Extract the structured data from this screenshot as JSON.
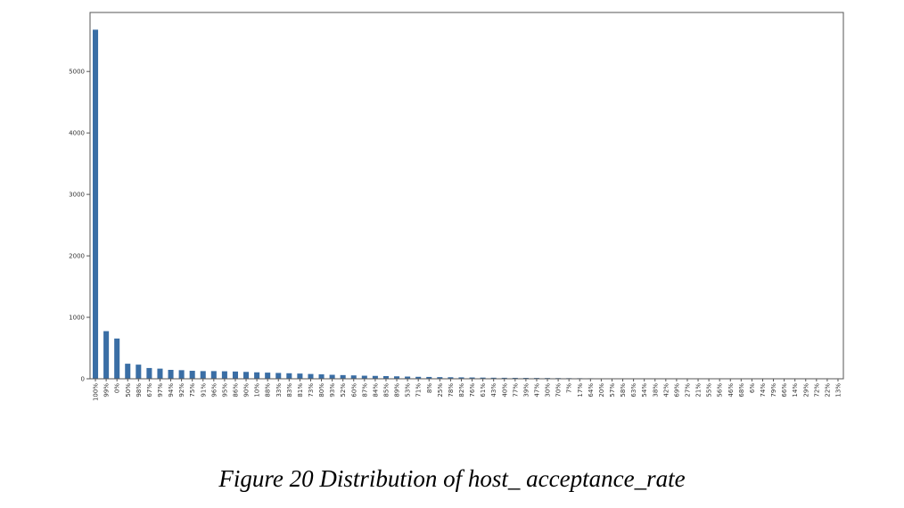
{
  "caption": "Figure 20 Distribution of host_ acceptance_rate",
  "chart_data": {
    "type": "bar",
    "title": "",
    "xlabel": "",
    "ylabel": "",
    "ylim": [
      0,
      5960
    ],
    "yticks": [
      0,
      1000,
      2000,
      3000,
      4000,
      5000
    ],
    "grid": false,
    "bar_color": "#3a6ea5",
    "categories": [
      "100%",
      "99%",
      "0%",
      "50%",
      "98%",
      "67%",
      "97%",
      "94%",
      "92%",
      "75%",
      "91%",
      "96%",
      "95%",
      "86%",
      "90%",
      "10%",
      "88%",
      "33%",
      "83%",
      "81%",
      "73%",
      "80%",
      "93%",
      "52%",
      "60%",
      "87%",
      "84%",
      "85%",
      "89%",
      "53%",
      "71%",
      "8%",
      "25%",
      "78%",
      "82%",
      "76%",
      "61%",
      "43%",
      "40%",
      "77%",
      "39%",
      "47%",
      "30%",
      "70%",
      "7%",
      "17%",
      "64%",
      "20%",
      "57%",
      "58%",
      "63%",
      "54%",
      "38%",
      "42%",
      "69%",
      "27%",
      "21%",
      "55%",
      "56%",
      "46%",
      "68%",
      "6%",
      "74%",
      "79%",
      "66%",
      "14%",
      "29%",
      "72%",
      "22%",
      "13%"
    ],
    "values": [
      5680,
      775,
      655,
      245,
      230,
      175,
      165,
      145,
      140,
      130,
      125,
      125,
      122,
      118,
      112,
      105,
      100,
      95,
      90,
      85,
      78,
      72,
      65,
      60,
      55,
      50,
      47,
      44,
      40,
      36,
      32,
      30,
      27,
      25,
      23,
      21,
      19,
      17,
      16,
      15,
      14,
      13,
      12,
      11,
      10,
      9,
      8,
      6,
      5,
      4,
      3,
      3,
      2,
      2,
      2,
      2,
      2,
      1,
      1,
      1,
      1,
      1,
      1,
      1,
      1,
      1,
      1,
      1,
      1,
      1
    ]
  }
}
